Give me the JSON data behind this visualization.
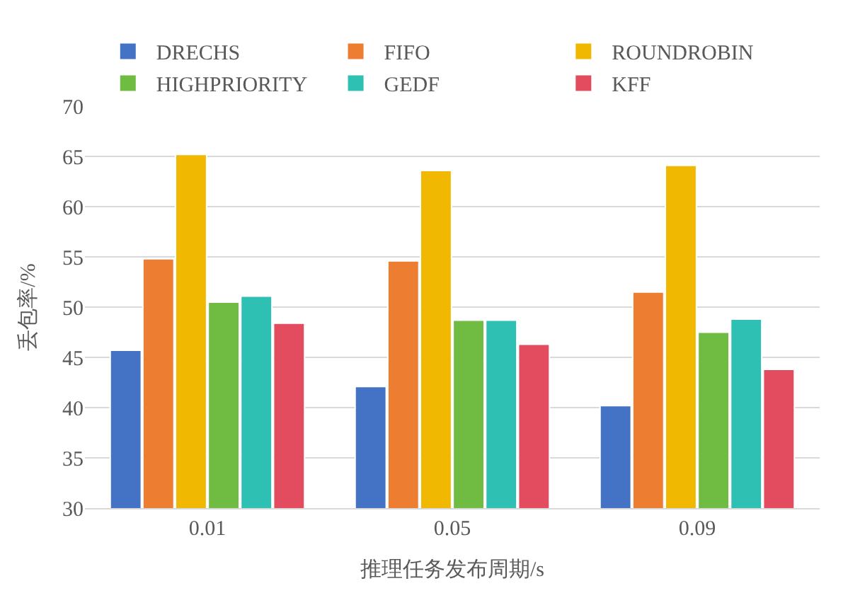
{
  "chart_data": {
    "type": "bar",
    "xlabel": "推理任务发布周期/s",
    "ylabel": "丢包率/%",
    "categories": [
      "0.01",
      "0.05",
      "0.09"
    ],
    "series": [
      {
        "name": "DRECHS",
        "color": "#4472c4",
        "values": [
          45.7,
          42.1,
          40.2
        ]
      },
      {
        "name": "FIFO",
        "color": "#ed7d31",
        "values": [
          54.8,
          54.6,
          51.5
        ]
      },
      {
        "name": "ROUNDROBIN",
        "color": "#f0b800",
        "values": [
          65.2,
          63.6,
          64.1
        ]
      },
      {
        "name": "HIGHPRIORITY",
        "color": "#70bb42",
        "values": [
          50.5,
          48.7,
          47.5
        ]
      },
      {
        "name": "GEDF",
        "color": "#2ec0b2",
        "values": [
          51.1,
          48.7,
          48.8
        ]
      },
      {
        "name": "KFF",
        "color": "#e34c5e",
        "values": [
          48.4,
          46.3,
          43.8
        ]
      }
    ],
    "ylim": [
      30,
      70
    ],
    "yticks": [
      30,
      35,
      40,
      45,
      50,
      55,
      60,
      65,
      70
    ],
    "grid": "y",
    "legend": "top"
  }
}
